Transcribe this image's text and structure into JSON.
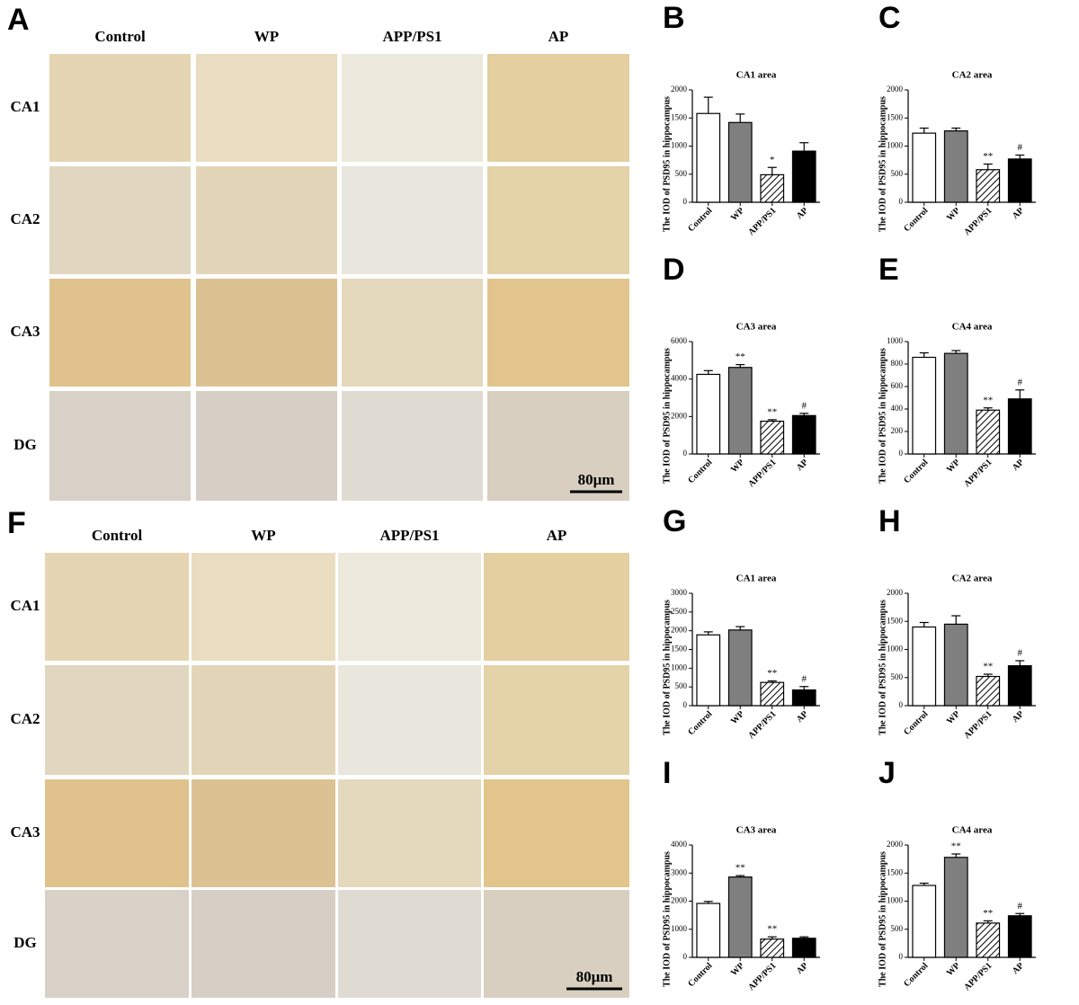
{
  "micrographs": [
    {
      "letter": "A",
      "columns": [
        "Control",
        "WP",
        "APP/PS1",
        "AP"
      ],
      "rows": [
        "CA1",
        "CA2",
        "CA3",
        "DG"
      ],
      "scale_bar": "80μm"
    },
    {
      "letter": "F",
      "columns": [
        "Control",
        "WP",
        "APP/PS1",
        "AP"
      ],
      "rows": [
        "CA1",
        "CA2",
        "CA3",
        "DG"
      ],
      "scale_bar": "80μm"
    }
  ],
  "chart_data": [
    {
      "type": "bar",
      "panel": "B",
      "title": "CA1 area",
      "y_label": "The IOD of PSD95  in hippocampus",
      "categories": [
        "Control",
        "WP",
        "APP/PS1",
        "AP"
      ],
      "values": [
        1580,
        1420,
        490,
        910
      ],
      "errors": [
        290,
        150,
        130,
        150
      ],
      "annotations": [
        null,
        null,
        "*",
        null
      ],
      "colors": [
        "#ffffff",
        "#7f7f7f",
        "#ffffff",
        "#000000"
      ],
      "hatch": [
        false,
        false,
        true,
        false
      ],
      "ylim": [
        0,
        2000
      ],
      "yticks": [
        0,
        500,
        1000,
        1500,
        2000
      ]
    },
    {
      "type": "bar",
      "panel": "C",
      "title": "CA2 area",
      "y_label": "The IOD of PSD95  in hippocampus",
      "categories": [
        "Control",
        "WP",
        "APP/PS1",
        "AP"
      ],
      "values": [
        1230,
        1270,
        580,
        770
      ],
      "errors": [
        90,
        50,
        100,
        70
      ],
      "annotations": [
        null,
        null,
        "**",
        "#"
      ],
      "colors": [
        "#ffffff",
        "#7f7f7f",
        "#ffffff",
        "#000000"
      ],
      "hatch": [
        false,
        false,
        true,
        false
      ],
      "ylim": [
        0,
        2000
      ],
      "yticks": [
        0,
        500,
        1000,
        1500,
        2000
      ]
    },
    {
      "type": "bar",
      "panel": "D",
      "title": "CA3 area",
      "y_label": "The IOD of PSD95 in hippocampus",
      "categories": [
        "Control",
        "WP",
        "APP/PS1",
        "AP"
      ],
      "values": [
        4250,
        4620,
        1750,
        2050
      ],
      "errors": [
        200,
        150,
        80,
        120
      ],
      "annotations": [
        null,
        "**",
        "**",
        "#"
      ],
      "colors": [
        "#ffffff",
        "#7f7f7f",
        "#ffffff",
        "#000000"
      ],
      "hatch": [
        false,
        false,
        true,
        false
      ],
      "ylim": [
        0,
        6000
      ],
      "yticks": [
        0,
        2000,
        4000,
        6000
      ]
    },
    {
      "type": "bar",
      "panel": "E",
      "title": "CA4 area",
      "y_label": "The IOD of PSD95 in hippocampus",
      "categories": [
        "Control",
        "WP",
        "APP/PS1",
        "AP"
      ],
      "values": [
        860,
        895,
        390,
        490
      ],
      "errors": [
        40,
        25,
        20,
        80
      ],
      "annotations": [
        null,
        null,
        "**",
        "#"
      ],
      "colors": [
        "#ffffff",
        "#7f7f7f",
        "#ffffff",
        "#000000"
      ],
      "hatch": [
        false,
        false,
        true,
        false
      ],
      "ylim": [
        0,
        1000
      ],
      "yticks": [
        0,
        200,
        400,
        600,
        800,
        1000
      ]
    },
    {
      "type": "bar",
      "panel": "G",
      "title": "CA1 area",
      "y_label": "The IOD of PSD95  in hippocampus",
      "categories": [
        "Control",
        "WP",
        "APP/PS1",
        "AP"
      ],
      "values": [
        1890,
        2020,
        620,
        420
      ],
      "errors": [
        80,
        90,
        40,
        90
      ],
      "annotations": [
        null,
        null,
        "**",
        "#"
      ],
      "colors": [
        "#ffffff",
        "#7f7f7f",
        "#ffffff",
        "#000000"
      ],
      "hatch": [
        false,
        false,
        true,
        false
      ],
      "ylim": [
        0,
        3000
      ],
      "yticks": [
        0,
        500,
        1000,
        1500,
        2000,
        2500,
        3000
      ]
    },
    {
      "type": "bar",
      "panel": "H",
      "title": "CA2 area",
      "y_label": "The IOD of PSD95  in hippocampus",
      "categories": [
        "Control",
        "WP",
        "APP/PS1",
        "AP"
      ],
      "values": [
        1400,
        1450,
        520,
        710
      ],
      "errors": [
        80,
        150,
        40,
        90
      ],
      "annotations": [
        null,
        null,
        "**",
        "#"
      ],
      "colors": [
        "#ffffff",
        "#7f7f7f",
        "#ffffff",
        "#000000"
      ],
      "hatch": [
        false,
        false,
        true,
        false
      ],
      "ylim": [
        0,
        2000
      ],
      "yticks": [
        0,
        500,
        1000,
        1500,
        2000
      ]
    },
    {
      "type": "bar",
      "panel": "I",
      "title": "CA3 area",
      "y_label": "The IOD of PSD95 in hippocampus",
      "categories": [
        "Control",
        "WP",
        "APP/PS1",
        "AP"
      ],
      "values": [
        1920,
        2860,
        650,
        680
      ],
      "errors": [
        70,
        50,
        80,
        50
      ],
      "annotations": [
        null,
        "**",
        "**",
        null
      ],
      "colors": [
        "#ffffff",
        "#7f7f7f",
        "#ffffff",
        "#000000"
      ],
      "hatch": [
        false,
        false,
        true,
        false
      ],
      "ylim": [
        0,
        4000
      ],
      "yticks": [
        0,
        1000,
        2000,
        3000,
        4000
      ]
    },
    {
      "type": "bar",
      "panel": "J",
      "title": "CA4 area",
      "y_label": "The IOD of PSD95 in hippocampus",
      "categories": [
        "Control",
        "WP",
        "APP/PS1",
        "AP"
      ],
      "values": [
        1280,
        1780,
        610,
        740
      ],
      "errors": [
        40,
        60,
        40,
        40
      ],
      "annotations": [
        null,
        "**",
        "**",
        "#"
      ],
      "colors": [
        "#ffffff",
        "#7f7f7f",
        "#ffffff",
        "#000000"
      ],
      "hatch": [
        false,
        false,
        true,
        false
      ],
      "ylim": [
        0,
        2000
      ],
      "yticks": [
        0,
        500,
        1000,
        1500,
        2000
      ]
    }
  ]
}
